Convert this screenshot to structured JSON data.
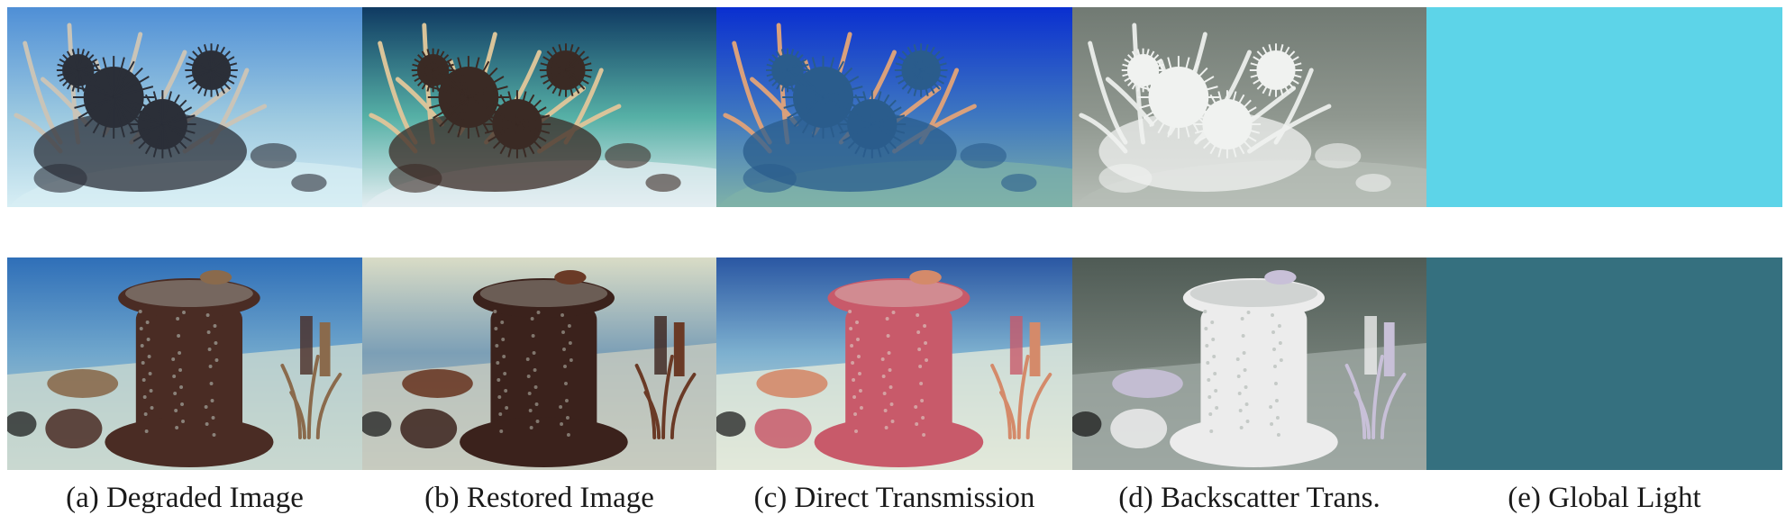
{
  "figure": {
    "captions": [
      "(a) Degraded Image",
      "(b) Restored Image",
      "(c) Direct Transmission",
      "(d) Backscatter Trans.",
      "(e) Global Light"
    ],
    "rows": [
      {
        "scene": "coral-reef-with-sea-urchins",
        "panels": [
          {
            "colors": {
              "top": "#4f8fd6",
              "mid": "#9cc9e0",
              "bottom": "#d7eef4",
              "subject": "#2b2f38",
              "coral": "#c9c4b8"
            }
          },
          {
            "colors": {
              "top": "#0f3a62",
              "mid": "#56b0a6",
              "bottom": "#e4eef2",
              "subject": "#3a2a24",
              "coral": "#d9c49a"
            }
          },
          {
            "colors": {
              "top": "#0a2fd0",
              "mid": "#3f78c0",
              "bottom": "#7fb2a8",
              "subject": "#2a5c8c",
              "coral": "#d9a07c"
            }
          },
          {
            "colors": {
              "top": "#717a73",
              "mid": "#8f978f",
              "bottom": "#b7beb7",
              "subject": "#f0f2f0",
              "coral": "#e6e9e6"
            }
          },
          {
            "colors": {
              "fill": "#5dd4e8"
            }
          }
        ]
      },
      {
        "scene": "underwater-capstan-wreck",
        "panels": [
          {
            "colors": {
              "top": "#2f6fb8",
              "mid": "#6fa6cc",
              "bottom": "#c9d8cf",
              "subject": "#4a2c24",
              "coral": "#8a6a4c"
            }
          },
          {
            "colors": {
              "top": "#d9dcc6",
              "mid": "#7c9fb6",
              "bottom": "#c7cbbf",
              "subject": "#3b221c",
              "coral": "#6a3a26"
            }
          },
          {
            "colors": {
              "top": "#2a57a3",
              "mid": "#7db0cf",
              "bottom": "#e2e8da",
              "subject": "#c85a6a",
              "coral": "#d48a6a"
            }
          },
          {
            "colors": {
              "top": "#4f5b55",
              "mid": "#6f7a73",
              "bottom": "#9ea7a2",
              "subject": "#ececec",
              "coral": "#c8c0d8"
            }
          },
          {
            "colors": {
              "fill": "#35707f"
            }
          }
        ]
      }
    ]
  }
}
